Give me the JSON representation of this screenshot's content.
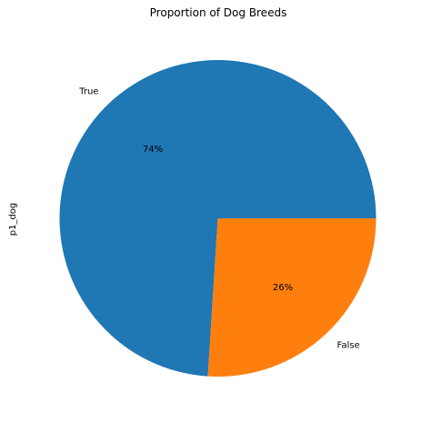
{
  "chart_data": {
    "type": "pie",
    "title": "Proportion of Dog Breeds",
    "ylabel": "p1_dog",
    "categories": [
      "True",
      "False"
    ],
    "values": [
      74,
      26
    ],
    "labels": [
      "74%",
      "26%"
    ],
    "colors": [
      "#1f77b4",
      "#ff7f0e"
    ],
    "start_angle_deg": 0,
    "direction": "counterclockwise",
    "legend": "none"
  }
}
